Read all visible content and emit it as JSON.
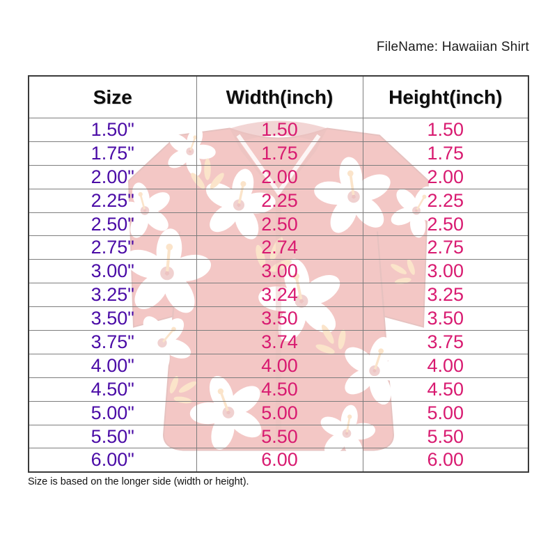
{
  "page": {
    "filename": "FileName: Hawaiian Shirt",
    "note": "Size is based on the longer side (width or height)."
  },
  "table": {
    "columns": [
      "Size",
      "Width(inch)",
      "Height(inch)"
    ],
    "rows": [
      [
        "1.50\"",
        "1.50",
        "1.50"
      ],
      [
        "1.75\"",
        "1.75",
        "1.75"
      ],
      [
        "2.00\"",
        "2.00",
        "2.00"
      ],
      [
        "2.25\"",
        "2.25",
        "2.25"
      ],
      [
        "2.50\"",
        "2.50",
        "2.50"
      ],
      [
        "2.75\"",
        "2.74",
        "2.75"
      ],
      [
        "3.00\"",
        "3.00",
        "3.00"
      ],
      [
        "3.25\"",
        "3.24",
        "3.25"
      ],
      [
        "3.50\"",
        "3.50",
        "3.50"
      ],
      [
        "3.75\"",
        "3.74",
        "3.75"
      ],
      [
        "4.00\"",
        "4.00",
        "4.00"
      ],
      [
        "4.50\"",
        "4.50",
        "4.50"
      ],
      [
        "5.00\"",
        "5.00",
        "5.00"
      ],
      [
        "5.50\"",
        "5.50",
        "5.50"
      ],
      [
        "6.00\"",
        "6.00",
        "6.00"
      ]
    ]
  },
  "watermark": {
    "icon": "hawaiian-shirt-icon"
  },
  "colors": {
    "size_color": "#4A0BA6",
    "value_color": "#D81A70",
    "grid_line": "#7d7d7d",
    "outer_border": "#3a3a3a",
    "shirt_red": "#D84A41",
    "shirt_dark": "#C03A33",
    "flower_white": "#FFFFFF",
    "accent_orange": "#F2A952",
    "ink": "#1c1c1c"
  }
}
